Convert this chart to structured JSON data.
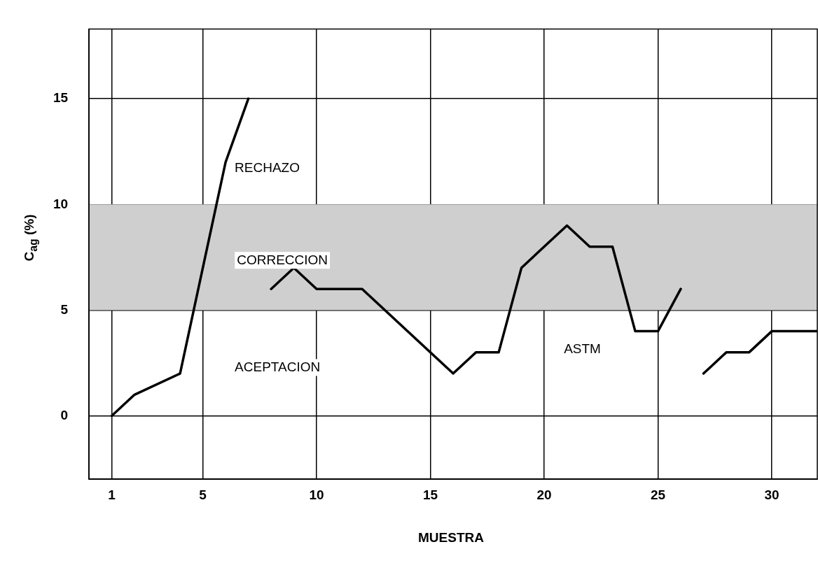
{
  "chart_data": {
    "type": "line",
    "xlabel": "MUESTRA",
    "ylabel": "C$_{ag}$ (%)",
    "xlim": [
      0,
      32
    ],
    "ylim": [
      -3,
      18.3
    ],
    "xticks": [
      1,
      5,
      10,
      15,
      20,
      25,
      30
    ],
    "yticks": [
      0,
      5,
      10,
      15
    ],
    "grid": true,
    "legend": false,
    "marker": "none",
    "line_style": "solid",
    "series": [
      {
        "color": "#000000",
        "x": [
          1,
          2,
          4,
          6,
          7
        ],
        "values": [
          0,
          1,
          2,
          12,
          15
        ]
      },
      {
        "color": "#000000",
        "x": [
          8,
          9,
          10,
          12,
          16,
          17,
          18,
          19,
          21,
          22,
          23,
          24,
          25,
          26
        ],
        "values": [
          6,
          7,
          6,
          6,
          2,
          3,
          3,
          7,
          9,
          8,
          8,
          4,
          4,
          6
        ]
      },
      {
        "color": "#000000",
        "x": [
          27,
          28,
          29,
          30,
          32
        ],
        "values": [
          2,
          3,
          3,
          4,
          4
        ]
      }
    ],
    "bands": [
      {
        "axis": "y",
        "from": 5,
        "to": 10,
        "color": "#cfcfcf"
      }
    ],
    "annotations": [
      "RECHAZO",
      "CORRECCION",
      "ASTM",
      "ACEPTACION"
    ]
  }
}
